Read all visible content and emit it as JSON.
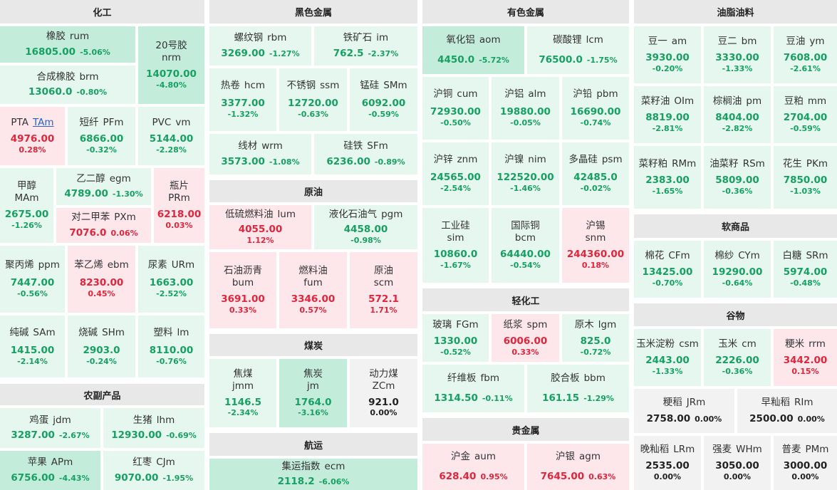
{
  "sections": {
    "chemical": "化工",
    "ferrous": "黑色金属",
    "nonferrous": "有色金属",
    "oils": "油脂油料",
    "agri": "农副产品",
    "crude": "原油",
    "coal": "煤炭",
    "shipping": "航运",
    "light": "轻化工",
    "precious": "贵金属",
    "soft": "软商品",
    "grain": "谷物"
  },
  "items": [
    {
      "id": "rum",
      "name": "橡胶",
      "code": "rum",
      "price": "16805.00",
      "pct": "-5.06%"
    },
    {
      "id": "nrm",
      "name": "20号胶",
      "code": "nrm",
      "price": "14070.00",
      "pct": "-4.80%"
    },
    {
      "id": "brm",
      "name": "合成橡胶",
      "code": "brm",
      "price": "13060.0",
      "pct": "-0.80%"
    },
    {
      "id": "tam",
      "name": "PTA",
      "code": "TAm",
      "price": "4976.00",
      "pct": "0.28%"
    },
    {
      "id": "pfm",
      "name": "短纤",
      "code": "PFm",
      "price": "6866.00",
      "pct": "-0.32%"
    },
    {
      "id": "vm",
      "name": "PVC",
      "code": "vm",
      "price": "5144.00",
      "pct": "-2.28%"
    },
    {
      "id": "mam",
      "name": "甲醇",
      "code": "MAm",
      "price": "2675.00",
      "pct": "-1.26%"
    },
    {
      "id": "egm",
      "name": "乙二醇",
      "code": "egm",
      "price": "4789.00",
      "pct": "-1.30%"
    },
    {
      "id": "prm",
      "name": "瓶片",
      "code": "PRm",
      "price": "6218.00",
      "pct": "0.03%"
    },
    {
      "id": "pxm",
      "name": "对二甲苯",
      "code": "PXm",
      "price": "7076.0",
      "pct": "0.06%"
    },
    {
      "id": "ppm",
      "name": "聚丙烯",
      "code": "ppm",
      "price": "7447.00",
      "pct": "-0.56%"
    },
    {
      "id": "ebm",
      "name": "苯乙烯",
      "code": "ebm",
      "price": "8230.00",
      "pct": "0.45%"
    },
    {
      "id": "urm",
      "name": "尿素",
      "code": "URm",
      "price": "1663.00",
      "pct": "-2.52%"
    },
    {
      "id": "sam",
      "name": "纯碱",
      "code": "SAm",
      "price": "1415.00",
      "pct": "-2.14%"
    },
    {
      "id": "shm",
      "name": "烧碱",
      "code": "SHm",
      "price": "2903.0",
      "pct": "-0.24%"
    },
    {
      "id": "lm",
      "name": "塑料",
      "code": "lm",
      "price": "8110.00",
      "pct": "-0.76%"
    },
    {
      "id": "jdm",
      "name": "鸡蛋",
      "code": "jdm",
      "price": "3287.00",
      "pct": "-2.67%"
    },
    {
      "id": "lhm",
      "name": "生猪",
      "code": "lhm",
      "price": "12930.00",
      "pct": "-0.69%"
    },
    {
      "id": "apm",
      "name": "苹果",
      "code": "APm",
      "price": "6756.00",
      "pct": "-4.43%"
    },
    {
      "id": "cjm",
      "name": "红枣",
      "code": "CJm",
      "price": "9070.00",
      "pct": "-1.95%"
    },
    {
      "id": "rbm",
      "name": "螺纹钢",
      "code": "rbm",
      "price": "3269.00",
      "pct": "-1.27%"
    },
    {
      "id": "im",
      "name": "铁矿石",
      "code": "im",
      "price": "762.5",
      "pct": "-2.37%"
    },
    {
      "id": "hcm",
      "name": "热卷",
      "code": "hcm",
      "price": "3377.00",
      "pct": "-1.32%"
    },
    {
      "id": "ssm",
      "name": "不锈钢",
      "code": "ssm",
      "price": "12720.00",
      "pct": "-0.63%"
    },
    {
      "id": "smm",
      "name": "锰硅",
      "code": "SMm",
      "price": "6092.00",
      "pct": "-0.59%"
    },
    {
      "id": "wrm",
      "name": "线材",
      "code": "wrm",
      "price": "3573.00",
      "pct": "-1.08%"
    },
    {
      "id": "sfm",
      "name": "硅铁",
      "code": "SFm",
      "price": "6236.00",
      "pct": "-0.89%"
    },
    {
      "id": "lum",
      "name": "低硫燃料油",
      "code": "lum",
      "price": "4055.00",
      "pct": "1.12%"
    },
    {
      "id": "pgm",
      "name": "液化石油气",
      "code": "pgm",
      "price": "4458.00",
      "pct": "-0.98%"
    },
    {
      "id": "bum",
      "name": "石油沥青",
      "code": "bum",
      "price": "3691.00",
      "pct": "0.33%"
    },
    {
      "id": "fum",
      "name": "燃料油",
      "code": "fum",
      "price": "3346.00",
      "pct": "0.57%"
    },
    {
      "id": "scm",
      "name": "原油",
      "code": "scm",
      "price": "572.1",
      "pct": "1.71%"
    },
    {
      "id": "jmm",
      "name": "焦煤",
      "code": "jmm",
      "price": "1146.5",
      "pct": "-2.34%"
    },
    {
      "id": "jm",
      "name": "焦炭",
      "code": "jm",
      "price": "1764.0",
      "pct": "-3.16%"
    },
    {
      "id": "zcm",
      "name": "动力煤",
      "code": "ZCm",
      "price": "921.0",
      "pct": "0.00%"
    },
    {
      "id": "ecm",
      "name": "集运指数",
      "code": "ecm",
      "price": "2118.2",
      "pct": "-6.06%"
    },
    {
      "id": "aom",
      "name": "氧化铝",
      "code": "aom",
      "price": "4450.0",
      "pct": "-5.72%"
    },
    {
      "id": "lcm",
      "name": "碳酸锂",
      "code": "lcm",
      "price": "76500.0",
      "pct": "-1.75%"
    },
    {
      "id": "cum",
      "name": "沪铜",
      "code": "cum",
      "price": "72930.00",
      "pct": "-0.50%"
    },
    {
      "id": "alm",
      "name": "沪铝",
      "code": "alm",
      "price": "19880.00",
      "pct": "-0.05%"
    },
    {
      "id": "pbm",
      "name": "沪铅",
      "code": "pbm",
      "price": "16690.00",
      "pct": "-0.74%"
    },
    {
      "id": "znm",
      "name": "沪锌",
      "code": "znm",
      "price": "24565.00",
      "pct": "-2.54%"
    },
    {
      "id": "nim",
      "name": "沪镍",
      "code": "nim",
      "price": "122520.00",
      "pct": "-1.46%"
    },
    {
      "id": "psm",
      "name": "多晶硅",
      "code": "psm",
      "price": "42485.0",
      "pct": "-0.02%"
    },
    {
      "id": "sim",
      "name": "工业硅",
      "code": "sim",
      "price": "10860.0",
      "pct": "-1.67%"
    },
    {
      "id": "bcm",
      "name": "国际铜",
      "code": "bcm",
      "price": "64440.00",
      "pct": "-0.54%"
    },
    {
      "id": "snm",
      "name": "沪锡",
      "code": "snm",
      "price": "244360.00",
      "pct": "0.18%"
    },
    {
      "id": "fgm",
      "name": "玻璃",
      "code": "FGm",
      "price": "1330.00",
      "pct": "-0.52%"
    },
    {
      "id": "spm",
      "name": "纸浆",
      "code": "spm",
      "price": "6006.00",
      "pct": "0.33%"
    },
    {
      "id": "lgm",
      "name": "原木",
      "code": "lgm",
      "price": "825.0",
      "pct": "-0.72%"
    },
    {
      "id": "fbm",
      "name": "纤维板",
      "code": "fbm",
      "price": "1314.50",
      "pct": "-0.11%"
    },
    {
      "id": "bbm",
      "name": "胶合板",
      "code": "bbm",
      "price": "161.15",
      "pct": "-1.29%"
    },
    {
      "id": "aum",
      "name": "沪金",
      "code": "aum",
      "price": "628.40",
      "pct": "0.95%"
    },
    {
      "id": "agm",
      "name": "沪银",
      "code": "agm",
      "price": "7645.00",
      "pct": "0.63%"
    },
    {
      "id": "am",
      "name": "豆一",
      "code": "am",
      "price": "3930.00",
      "pct": "-0.20%"
    },
    {
      "id": "bm",
      "name": "豆二",
      "code": "bm",
      "price": "3330.00",
      "pct": "-1.33%"
    },
    {
      "id": "ym",
      "name": "豆油",
      "code": "ym",
      "price": "7608.00",
      "pct": "-2.61%"
    },
    {
      "id": "oim",
      "name": "菜籽油",
      "code": "OIm",
      "price": "8819.00",
      "pct": "-2.81%"
    },
    {
      "id": "pm",
      "name": "棕榈油",
      "code": "pm",
      "price": "8404.00",
      "pct": "-2.82%"
    },
    {
      "id": "mm",
      "name": "豆粕",
      "code": "mm",
      "price": "2704.00",
      "pct": "-0.59%"
    },
    {
      "id": "rmm",
      "name": "菜籽粕",
      "code": "RMm",
      "price": "2383.00",
      "pct": "-1.65%"
    },
    {
      "id": "rsm",
      "name": "油菜籽",
      "code": "RSm",
      "price": "5809.00",
      "pct": "-0.36%"
    },
    {
      "id": "pkm",
      "name": "花生",
      "code": "PKm",
      "price": "7850.00",
      "pct": "-1.03%"
    },
    {
      "id": "cfm",
      "name": "棉花",
      "code": "CFm",
      "price": "13425.00",
      "pct": "-0.70%"
    },
    {
      "id": "cym",
      "name": "棉纱",
      "code": "CYm",
      "price": "19290.00",
      "pct": "-0.64%"
    },
    {
      "id": "srm",
      "name": "白糖",
      "code": "SRm",
      "price": "5974.00",
      "pct": "-0.48%"
    },
    {
      "id": "csm",
      "name": "玉米淀粉",
      "code": "csm",
      "price": "2443.00",
      "pct": "-1.33%"
    },
    {
      "id": "cm",
      "name": "玉米",
      "code": "cm",
      "price": "2226.00",
      "pct": "-0.36%"
    },
    {
      "id": "rrm",
      "name": "粳米",
      "code": "rrm",
      "price": "3442.00",
      "pct": "0.15%"
    },
    {
      "id": "jrm",
      "name": "粳稻",
      "code": "JRm",
      "price": "2758.00",
      "pct": "0.00%"
    },
    {
      "id": "rim",
      "name": "早籼稻",
      "code": "RIm",
      "price": "2500.00",
      "pct": "0.00%"
    },
    {
      "id": "lrm",
      "name": "晚籼稻",
      "code": "LRm",
      "price": "2535.00",
      "pct": "0.00%"
    },
    {
      "id": "whm",
      "name": "强麦",
      "code": "WHm",
      "price": "3050.00",
      "pct": "0.00%"
    },
    {
      "id": "pmm",
      "name": "普麦",
      "code": "PMm",
      "price": "3000.00",
      "pct": "0.00%"
    }
  ],
  "colors": {
    "up": "#e0263c",
    "down": "#17a062",
    "flat": "#222222",
    "up_bg": "#fde7ea",
    "down_bg": "#e5f7ee",
    "down_strong_bg": "#c4ecdb",
    "header_bg": "#e8e8e8"
  }
}
